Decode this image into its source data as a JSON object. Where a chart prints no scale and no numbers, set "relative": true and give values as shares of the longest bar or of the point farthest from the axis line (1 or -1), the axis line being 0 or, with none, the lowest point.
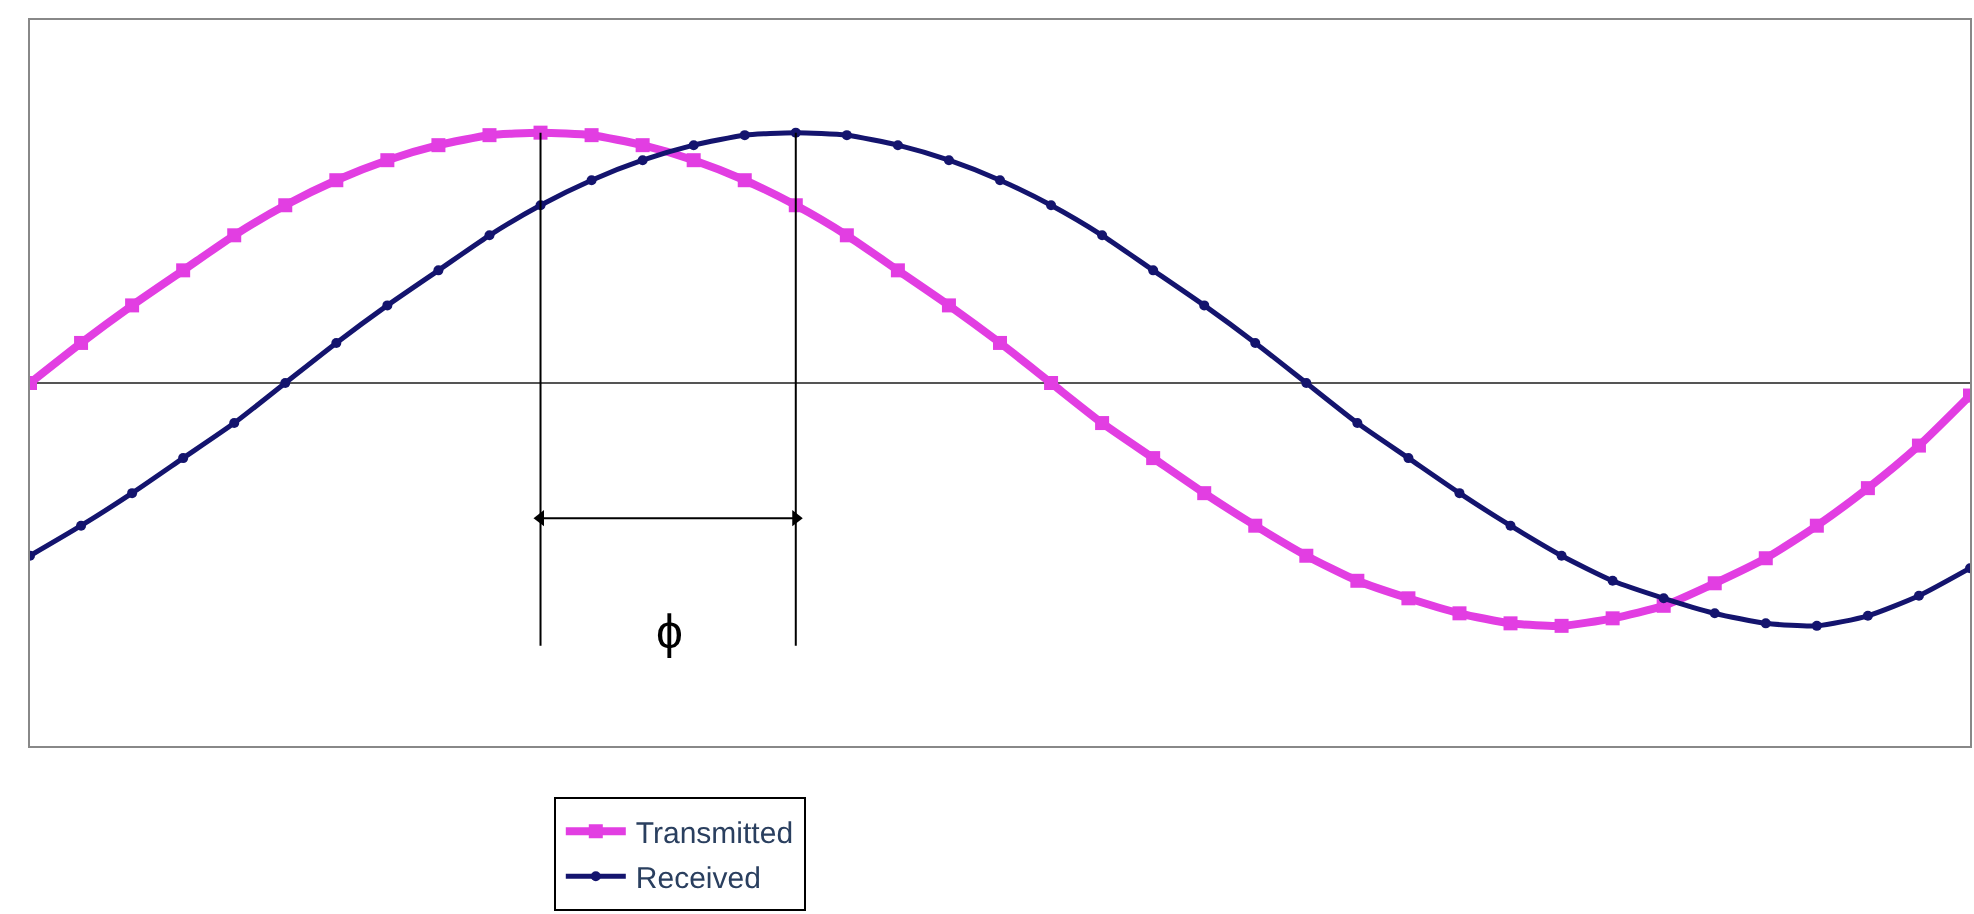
{
  "chart_data": {
    "type": "line",
    "relative": true,
    "legend": "bottom",
    "tick_labels": false,
    "categories": [
      null,
      null,
      null,
      null,
      null,
      null,
      null,
      null,
      null,
      null,
      null,
      null,
      null,
      null,
      null,
      null,
      null,
      null,
      null,
      null,
      null,
      null,
      null,
      null,
      null,
      null,
      null,
      null,
      null,
      null,
      null,
      null,
      null,
      null,
      null,
      null,
      null,
      null,
      null
    ],
    "series": [
      {
        "name": "Transmitted",
        "color": "#e23ee2",
        "marker": "square",
        "values": [
          0,
          0.16,
          0.31,
          0.45,
          0.59,
          0.71,
          0.81,
          0.89,
          0.95,
          0.99,
          1,
          0.99,
          0.95,
          0.89,
          0.81,
          0.71,
          0.59,
          0.45,
          0.31,
          0.16,
          0,
          -0.16,
          -0.3,
          -0.44,
          -0.57,
          -0.69,
          -0.79,
          -0.86,
          -0.92,
          -0.96,
          -0.97,
          -0.94,
          -0.89,
          -0.8,
          -0.7,
          -0.57,
          -0.42,
          -0.25,
          -0.05
        ]
      },
      {
        "name": "Received",
        "color": "#14146e",
        "marker": "circle",
        "values": [
          -0.69,
          -0.57,
          -0.44,
          -0.3,
          -0.16,
          0,
          0.16,
          0.31,
          0.45,
          0.59,
          0.71,
          0.81,
          0.89,
          0.95,
          0.99,
          1,
          0.99,
          0.95,
          0.89,
          0.81,
          0.71,
          0.59,
          0.45,
          0.31,
          0.16,
          0,
          -0.16,
          -0.3,
          -0.44,
          -0.57,
          -0.69,
          -0.79,
          -0.86,
          -0.92,
          -0.96,
          -0.97,
          -0.93,
          -0.85,
          -0.74
        ]
      }
    ],
    "annotations": [
      "ϕ"
    ]
  }
}
